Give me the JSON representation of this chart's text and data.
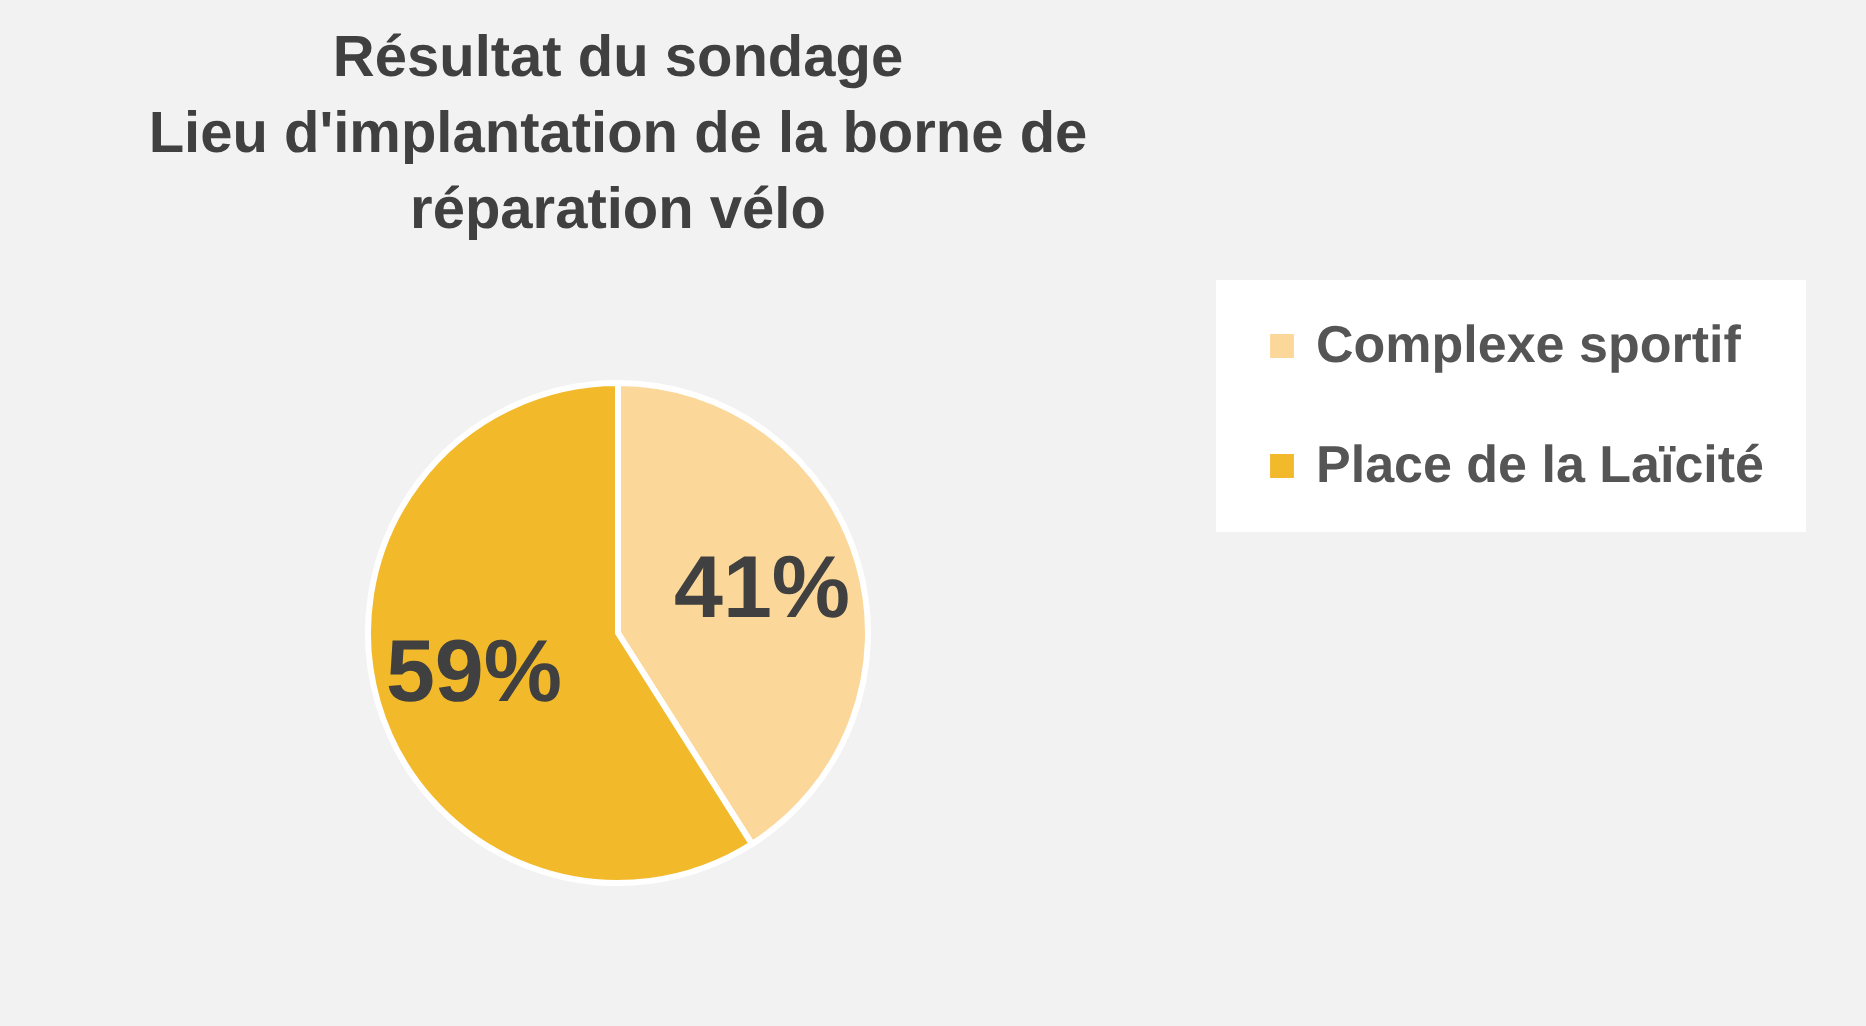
{
  "chart_data": {
    "type": "pie",
    "title": "Résultat du sondage\nLieu d'implantation de la borne de\nréparation vélo",
    "categories": [
      "Complexe sportif",
      "Place de la Laïcité"
    ],
    "values": [
      41,
      59
    ],
    "colors": [
      "#fcd79a",
      "#f2b92a"
    ],
    "value_labels": [
      "41%",
      "59%"
    ],
    "legend": "right"
  }
}
